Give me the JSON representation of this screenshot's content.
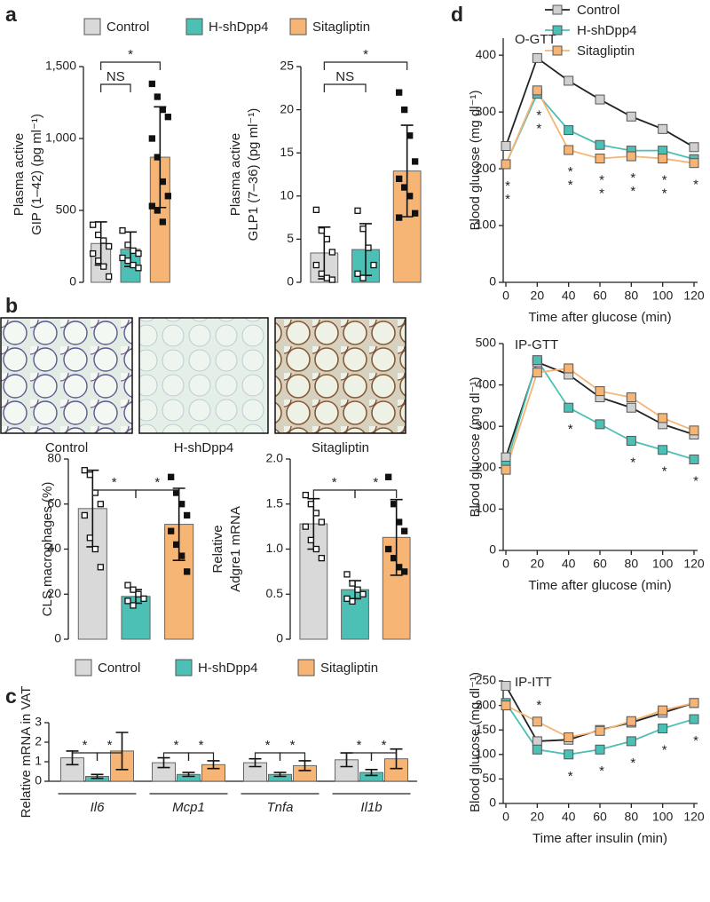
{
  "panel_labels": [
    "a",
    "b",
    "c",
    "d"
  ],
  "legends": [
    [
      {
        "name": "Control",
        "color": "#d9d9d9"
      },
      {
        "name": "H-shDpp4",
        "color": "#4cc0b4"
      },
      {
        "name": "Sitagliptin",
        "color": "#f6b575"
      }
    ],
    [
      {
        "name": "Control",
        "color": "#d9d9d9"
      },
      {
        "name": "H-shDpp4",
        "color": "#4cc0b4"
      },
      {
        "name": "Sitagliptin",
        "color": "#f6b575"
      }
    ]
  ],
  "images": [
    "Control",
    "H-shDpp4",
    "Sitagliptin"
  ],
  "chart_data": [
    {
      "type": "bar",
      "ylabel": [
        "Plasma active",
        "GIP (1–42) (pg ml⁻¹)"
      ],
      "ylim": [
        0,
        1500
      ],
      "yticks": [
        0,
        500,
        {
          "value": 1000,
          "label": "1,000"
        },
        {
          "value": 1500,
          "label": "1,500"
        }
      ],
      "values": [
        270,
        230,
        870
      ],
      "errors": [
        150,
        120,
        350
      ],
      "colors": [
        "#d9d9d9",
        "#4cc0b4",
        "#f6b575"
      ],
      "points": [
        [
          400,
          330,
          290,
          250,
          200,
          150,
          110,
          40
        ],
        [
          360,
          260,
          220,
          200,
          170,
          150,
          120,
          100
        ],
        [
          1380,
          1290,
          1200,
          1150,
          1000,
          870,
          700,
          600,
          530,
          500,
          420
        ]
      ],
      "annotations": [
        {
          "text": "NS",
          "from": 0,
          "to": 1
        },
        {
          "text": "*",
          "from": 0,
          "to": 2
        }
      ]
    },
    {
      "type": "bar",
      "ylabel": [
        "Plasma active",
        "GLP1 (7–36) (pg ml⁻¹)"
      ],
      "ylim": [
        0,
        25
      ],
      "yticks": [
        0,
        5,
        10,
        15,
        20,
        25
      ],
      "values": [
        3.4,
        3.8,
        12.9
      ],
      "errors": [
        3,
        3,
        5.3
      ],
      "colors": [
        "#d9d9d9",
        "#4cc0b4",
        "#f6b575"
      ],
      "points": [
        [
          8.4,
          6,
          5,
          3.5,
          2,
          1,
          0.5,
          0.3
        ],
        [
          8.3,
          6.2,
          4,
          2,
          1,
          0.5
        ],
        [
          22,
          20,
          17,
          14,
          12,
          11,
          10,
          8,
          7.5
        ]
      ],
      "annotations": [
        {
          "text": "NS",
          "from": 0,
          "to": 1
        },
        {
          "text": "*",
          "from": 0,
          "to": 2
        }
      ]
    },
    {
      "type": "bar",
      "ylabel": [
        "CLS macrophages (%)"
      ],
      "ylim": [
        0,
        80
      ],
      "yticks": [
        0,
        20,
        40,
        60,
        80
      ],
      "values": [
        58,
        19,
        51
      ],
      "errors": [
        17,
        3,
        16
      ],
      "colors": [
        "#d9d9d9",
        "#4cc0b4",
        "#f6b575"
      ],
      "points": [
        [
          75,
          73,
          65,
          60,
          55,
          45,
          40,
          32
        ],
        [
          24,
          22,
          20,
          18,
          17,
          15
        ],
        [
          72,
          65,
          60,
          55,
          48,
          42,
          37,
          30
        ]
      ],
      "annotations": [
        {
          "text": "*",
          "from": 0,
          "to": 1
        },
        {
          "text": "*",
          "from": 1,
          "to": 2
        }
      ]
    },
    {
      "type": "bar",
      "ylabel": [
        "Relative",
        "Adgre1 mRNA"
      ],
      "ylim": [
        0,
        2
      ],
      "yticks": [
        0,
        0.5,
        {
          "value": 1,
          "label": "1.0"
        },
        1.5,
        {
          "value": 2,
          "label": "2.0"
        }
      ],
      "values": [
        1.28,
        0.55,
        1.13
      ],
      "errors": [
        0.28,
        0.1,
        0.42
      ],
      "colors": [
        "#d9d9d9",
        "#4cc0b4",
        "#f6b575"
      ],
      "points": [
        [
          1.6,
          1.5,
          1.4,
          1.3,
          1.25,
          1.1,
          1.0,
          0.9
        ],
        [
          0.72,
          0.62,
          0.55,
          0.5,
          0.45,
          0.42
        ],
        [
          1.8,
          1.5,
          1.3,
          1.2,
          1.0,
          0.9,
          0.8,
          0.75
        ]
      ],
      "annotations": [
        {
          "text": "*",
          "from": 0,
          "to": 1
        },
        {
          "text": "*",
          "from": 1,
          "to": 2
        }
      ]
    },
    {
      "type": "grouped_bar",
      "ylabel": [
        "Relative mRNA in VAT"
      ],
      "ylim": [
        0,
        3
      ],
      "yticks": [
        0,
        1,
        2,
        3
      ],
      "categories": [
        "Il6",
        "Mcp1",
        "Tnfa",
        "Il1b"
      ],
      "series": [
        {
          "color": "#d9d9d9",
          "values": [
            1.2,
            0.95,
            0.95,
            1.1
          ],
          "errors": [
            0.35,
            0.25,
            0.2,
            0.35
          ]
        },
        {
          "color": "#4cc0b4",
          "values": [
            0.25,
            0.35,
            0.35,
            0.45
          ],
          "errors": [
            0.1,
            0.1,
            0.1,
            0.15
          ]
        },
        {
          "color": "#f6b575",
          "values": [
            1.55,
            0.85,
            0.8,
            1.15
          ],
          "errors": [
            0.95,
            0.2,
            0.25,
            0.5
          ]
        }
      ],
      "annotations": [
        {
          "category": 0,
          "text": "*",
          "from": 0,
          "to": 1
        },
        {
          "category": 0,
          "text": "*",
          "from": 1,
          "to": 2
        },
        {
          "category": 1,
          "text": "*",
          "from": 0,
          "to": 1
        },
        {
          "category": 1,
          "text": "*",
          "from": 1,
          "to": 2
        },
        {
          "category": 2,
          "text": "*",
          "from": 0,
          "to": 1
        },
        {
          "category": 2,
          "text": "*",
          "from": 1,
          "to": 2
        },
        {
          "category": 3,
          "text": "*",
          "from": 0,
          "to": 1
        },
        {
          "category": 3,
          "text": "*",
          "from": 1,
          "to": 2
        }
      ]
    },
    {
      "type": "line",
      "title": "O-GTT",
      "xlabel": "Time after glucose (min)",
      "ylabel": [
        "Blood glucose (mg dl⁻¹)"
      ],
      "x": [
        0,
        20,
        40,
        60,
        80,
        100,
        120
      ],
      "xlim": [
        0,
        120
      ],
      "xticks": [
        0,
        20,
        40,
        60,
        80,
        100,
        120
      ],
      "ylim": [
        0,
        430
      ],
      "yticks": [
        0,
        100,
        200,
        300,
        400
      ],
      "legend": "top",
      "series": [
        {
          "name": "Control",
          "color": "#d0d0d0",
          "line_color": "#222222",
          "values": [
            240,
            395,
            355,
            322,
            292,
            270,
            238
          ]
        },
        {
          "name": "H-shDpp4",
          "color": "#4cc0b4",
          "line_color": "#4cc0b4",
          "values": [
            208,
            332,
            268,
            242,
            232,
            232,
            217
          ]
        },
        {
          "name": "Sitagliptin",
          "color": "#f6b575",
          "line_color": "#f6b575",
          "values": [
            208,
            338,
            233,
            218,
            222,
            218,
            210
          ]
        }
      ],
      "annotations": [
        {
          "x": 0,
          "text": "*"
        },
        {
          "x": 0,
          "text": "*"
        },
        {
          "x": 20,
          "text": "*"
        },
        {
          "x": 20,
          "text": "*"
        },
        {
          "x": 40,
          "text": "*"
        },
        {
          "x": 40,
          "text": "*"
        },
        {
          "x": 60,
          "text": "*"
        },
        {
          "x": 60,
          "text": "*"
        },
        {
          "x": 80,
          "text": "*"
        },
        {
          "x": 80,
          "text": "*"
        },
        {
          "x": 100,
          "text": "*"
        },
        {
          "x": 100,
          "text": "*"
        },
        {
          "x": 120,
          "text": "*"
        }
      ]
    },
    {
      "type": "line",
      "title": "IP-GTT",
      "xlabel": "Time after glucose (min)",
      "ylabel": [
        "Blood glucose (mg dl⁻¹)"
      ],
      "x": [
        0,
        20,
        40,
        60,
        80,
        100,
        120
      ],
      "xlim": [
        0,
        120
      ],
      "xticks": [
        0,
        20,
        40,
        60,
        80,
        100,
        120
      ],
      "ylim": [
        0,
        500
      ],
      "yticks": [
        0,
        100,
        200,
        300,
        400,
        500
      ],
      "series": [
        {
          "color": "#d0d0d0",
          "line_color": "#222222",
          "values": [
            225,
            455,
            425,
            370,
            345,
            305,
            280
          ]
        },
        {
          "color": "#4cc0b4",
          "line_color": "#4cc0b4",
          "values": [
            205,
            460,
            345,
            305,
            265,
            243,
            220
          ]
        },
        {
          "color": "#f6b575",
          "line_color": "#f6b575",
          "values": [
            195,
            430,
            440,
            385,
            370,
            320,
            290
          ]
        }
      ],
      "annotations": [
        {
          "x": 40,
          "text": "*"
        },
        {
          "x": 80,
          "text": "*"
        },
        {
          "x": 100,
          "text": "*"
        },
        {
          "x": 120,
          "text": "*"
        }
      ]
    },
    {
      "type": "line",
      "title": "IP-ITT",
      "xlabel": "Time after insulin (min)",
      "ylabel": [
        "Blood glucose (mg dl⁻¹)"
      ],
      "x": [
        0,
        20,
        40,
        60,
        80,
        100,
        120
      ],
      "xlim": [
        0,
        120
      ],
      "xticks": [
        0,
        20,
        40,
        60,
        80,
        100,
        120
      ],
      "ylim": [
        0,
        250
      ],
      "yticks": [
        0,
        50,
        100,
        150,
        200,
        250
      ],
      "series": [
        {
          "color": "#d0d0d0",
          "line_color": "#222222",
          "values": [
            240,
            127,
            130,
            150,
            165,
            185,
            205
          ]
        },
        {
          "color": "#4cc0b4",
          "line_color": "#4cc0b4",
          "values": [
            205,
            110,
            100,
            110,
            127,
            153,
            172
          ]
        },
        {
          "color": "#f6b575",
          "line_color": "#f6b575",
          "values": [
            200,
            167,
            135,
            148,
            168,
            190,
            205
          ]
        }
      ],
      "annotations": [
        {
          "x": 20,
          "text": "*",
          "position": "above"
        },
        {
          "x": 40,
          "text": "*"
        },
        {
          "x": 60,
          "text": "*"
        },
        {
          "x": 80,
          "text": "*"
        },
        {
          "x": 100,
          "text": "*"
        },
        {
          "x": 120,
          "text": "*"
        }
      ]
    }
  ]
}
